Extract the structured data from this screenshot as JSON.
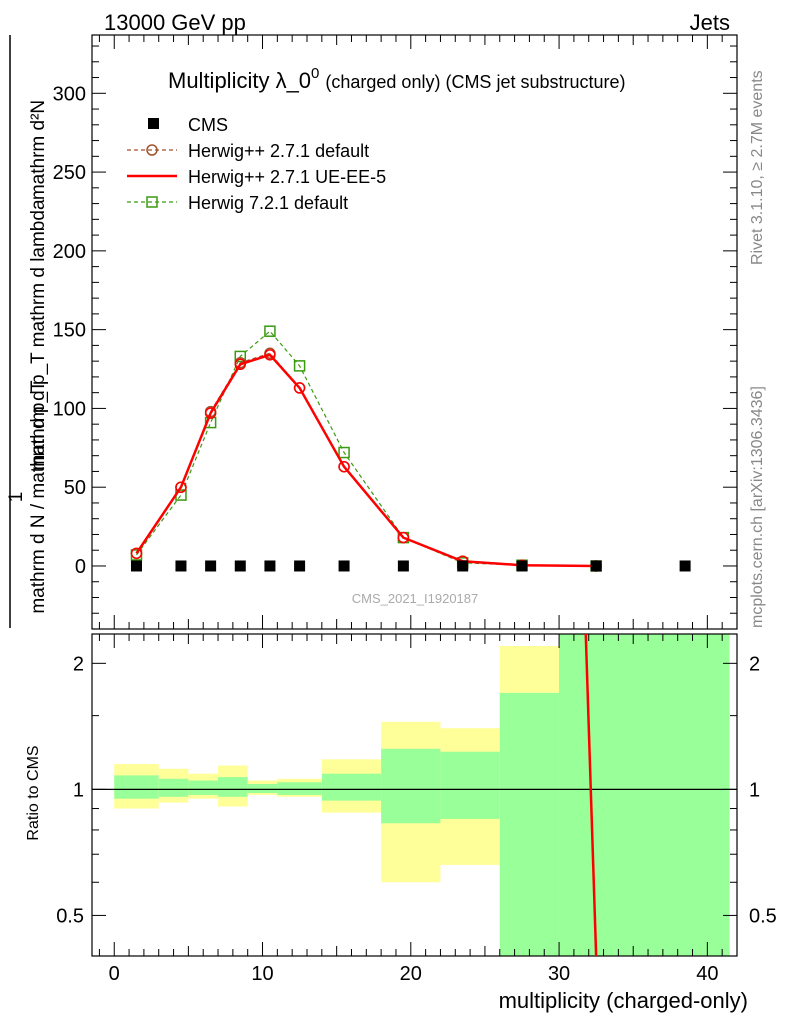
{
  "header": {
    "left": "13000 GeV pp",
    "right": "Jets"
  },
  "side_text": {
    "rivet": "Rivet 3.1.10, ≥ 2.7M events",
    "mcplots": "mcplots.cern.ch [arXiv:1306.3436]"
  },
  "chart_data": [
    {
      "type": "scatter",
      "title_main": "Multiplicity λ_0",
      "title_sup": "0",
      "title_suffix": "(charged only) (CMS jet substructure)",
      "analysis_tag": "CMS_2021_I1920187",
      "ylabel_left": "1 / mathrm d N / mathrm d p_T mathrm d lambda",
      "ylabel_numerator": "mathrm d²N",
      "ylabel_denominator": "mathrm d N / mathrm d p_T mathrm d p_T mathrm d lambda",
      "ylabel_full": "1 / mathrm d N / mathrm d p_T  ·  mathrm d²N / mathrm d p_T mathrm d lambda",
      "xlim": [
        -1.5,
        42
      ],
      "ylim": [
        -40,
        337
      ],
      "y_ticks": [
        0,
        50,
        100,
        150,
        200,
        250,
        300
      ],
      "x_ticks": [
        0,
        10,
        20,
        30,
        40
      ],
      "legend_position": "top-left",
      "series": [
        {
          "name": "CMS",
          "color": "#000000",
          "marker": "square",
          "x": [
            1.5,
            4.5,
            6.5,
            8.5,
            10.5,
            12.5,
            15.5,
            19.5,
            23.5,
            27.5,
            32.5,
            38.5
          ],
          "y": [
            0,
            0,
            0,
            0,
            0,
            0,
            0,
            0,
            0,
            0,
            0,
            0
          ]
        },
        {
          "name": "Herwig++ 2.7.1 default",
          "color": "#a0522d",
          "marker": "circle",
          "style": "dashed",
          "x": [
            1.5,
            4.5,
            6.5,
            8.5,
            10.5,
            12.5,
            15.5,
            19.5,
            23.5,
            27.5,
            32.5
          ],
          "y": [
            8,
            50,
            98,
            129,
            135,
            113,
            63,
            18,
            3,
            0.5,
            0
          ]
        },
        {
          "name": "Herwig++ 2.7.1 UE-EE-5",
          "color": "#ff0000",
          "marker": "none",
          "style": "solid",
          "x": [
            1.5,
            4.5,
            6.5,
            8.5,
            10.5,
            12.5,
            15.5,
            19.5,
            23.5,
            27.5,
            32.5
          ],
          "y": [
            8,
            50,
            97,
            128,
            134,
            113,
            63,
            18,
            3,
            0.5,
            0
          ]
        },
        {
          "name": "Herwig 7.2.1 default",
          "color": "#3a9a10",
          "marker": "open-square",
          "style": "dashed",
          "x": [
            1.5,
            4.5,
            6.5,
            8.5,
            10.5,
            12.5,
            15.5,
            19.5,
            23.5,
            27.5,
            32.5
          ],
          "y": [
            7,
            45,
            91,
            133,
            149,
            127,
            72,
            18,
            2,
            0.5,
            0
          ]
        }
      ]
    },
    {
      "type": "line",
      "ylabel": "Ratio to CMS",
      "xlabel": "multiplicity (charged-only)",
      "xlim": [
        -1.5,
        42
      ],
      "ylim": [
        0.4,
        2.35
      ],
      "y_scale": "log",
      "y_ticks": [
        0.5,
        1,
        2
      ],
      "y_tick_labels": [
        "0.5",
        "1",
        "2"
      ],
      "x_ticks": [
        0,
        10,
        20,
        30,
        40
      ],
      "reference_line": 1,
      "bands": [
        {
          "x0": 0,
          "x1": 3,
          "outer": [
            0.9,
            1.15
          ],
          "inner": [
            0.95,
            1.08
          ]
        },
        {
          "x0": 3,
          "x1": 5,
          "outer": [
            0.93,
            1.12
          ],
          "inner": [
            0.96,
            1.06
          ]
        },
        {
          "x0": 5,
          "x1": 7,
          "outer": [
            0.95,
            1.09
          ],
          "inner": [
            0.97,
            1.05
          ]
        },
        {
          "x0": 7,
          "x1": 9,
          "outer": [
            0.91,
            1.14
          ],
          "inner": [
            0.96,
            1.07
          ]
        },
        {
          "x0": 9,
          "x1": 11,
          "outer": [
            0.97,
            1.05
          ],
          "inner": [
            0.98,
            1.03
          ]
        },
        {
          "x0": 11,
          "x1": 14,
          "outer": [
            0.96,
            1.06
          ],
          "inner": [
            0.97,
            1.04
          ]
        },
        {
          "x0": 14,
          "x1": 18,
          "outer": [
            0.88,
            1.18
          ],
          "inner": [
            0.94,
            1.09
          ]
        },
        {
          "x0": 18,
          "x1": 22,
          "outer": [
            0.6,
            1.45
          ],
          "inner": [
            0.83,
            1.25
          ]
        },
        {
          "x0": 22,
          "x1": 26,
          "outer": [
            0.66,
            1.4
          ],
          "inner": [
            0.85,
            1.23
          ]
        },
        {
          "x0": 26,
          "x1": 30,
          "outer": [
            0.35,
            2.2
          ],
          "inner": [
            0.35,
            1.7
          ]
        },
        {
          "x0": 30,
          "x1": 41.5,
          "outer": [
            0.35,
            2.35
          ],
          "inner": [
            0.35,
            2.35
          ]
        }
      ],
      "band_colors": {
        "outer": "#ffff99",
        "inner": "#99ff99"
      },
      "series": [
        {
          "name": "Herwig++ 2.7.1 UE-EE-5",
          "color": "#ff0000",
          "x": [
            31.8,
            32.5
          ],
          "y": [
            2.35,
            0.4
          ]
        }
      ]
    }
  ]
}
